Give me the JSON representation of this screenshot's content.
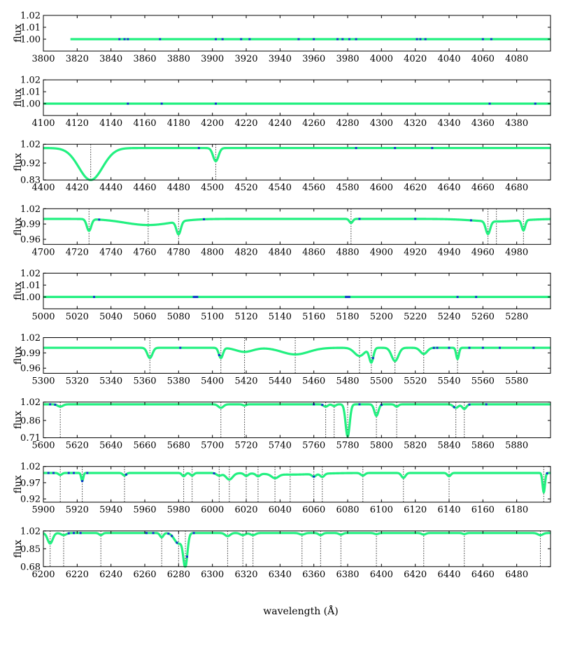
{
  "figure": {
    "xlabel": "wavelength (Å)",
    "colors": {
      "model": "#22f080",
      "observed": "#1133cc",
      "line_marker": "#333333",
      "axis": "#000000"
    }
  },
  "chart_data": [
    {
      "type": "line",
      "ylabel": "flux",
      "xlim": [
        3800,
        4100
      ],
      "ylim": [
        0.99,
        1.02
      ],
      "yticks": [
        "1.02",
        "1.01",
        "1.00"
      ],
      "yticks_values": [
        1.02,
        1.01,
        1.0
      ],
      "xticks": [
        3800,
        3820,
        3840,
        3860,
        3880,
        3900,
        3920,
        3940,
        3960,
        3980,
        4000,
        4020,
        4040,
        4060,
        4080
      ],
      "x_start": 3816,
      "continuum": 1.0,
      "lines": [],
      "observed_noise": [
        3845,
        3848,
        3850,
        3869,
        3902,
        3906,
        3917,
        3922,
        3951,
        3960,
        3974,
        3977,
        3981,
        3985,
        4021,
        4023,
        4026,
        4060,
        4065
      ]
    },
    {
      "type": "line",
      "ylabel": "flux",
      "xlim": [
        4100,
        4400
      ],
      "ylim": [
        0.99,
        1.02
      ],
      "yticks": [
        "1.02",
        "1.01",
        "1.00"
      ],
      "yticks_values": [
        1.02,
        1.01,
        1.0
      ],
      "xticks": [
        4100,
        4120,
        4140,
        4160,
        4180,
        4200,
        4220,
        4240,
        4260,
        4280,
        4300,
        4320,
        4340,
        4360,
        4380
      ],
      "x_start": 4100,
      "continuum": 1.0,
      "lines": [],
      "observed_noise": [
        4150,
        4170,
        4202,
        4364,
        4391
      ]
    },
    {
      "type": "line",
      "ylabel": "flux",
      "xlim": [
        4400,
        4700
      ],
      "ylim": [
        0.83,
        1.02
      ],
      "yticks": [
        "1.02",
        "0.92",
        "0.83"
      ],
      "yticks_values": [
        1.02,
        0.92,
        0.83
      ],
      "xticks": [
        4400,
        4420,
        4440,
        4460,
        4480,
        4500,
        4520,
        4540,
        4560,
        4580,
        4600,
        4620,
        4640,
        4660,
        4680
      ],
      "x_start": 4400,
      "continuum": 1.0,
      "lines": [
        {
          "x": 4428,
          "depth": 0.17,
          "width": 7
        },
        {
          "x": 4502,
          "depth": 0.07,
          "width": 1.6
        }
      ],
      "observed_noise": [
        4492,
        4585,
        4608,
        4630
      ]
    },
    {
      "type": "line",
      "ylabel": "flux",
      "xlim": [
        4700,
        5000
      ],
      "ylim": [
        0.95,
        1.02
      ],
      "yticks": [
        "1.02",
        "0.99",
        "0.96"
      ],
      "yticks_values": [
        1.02,
        0.99,
        0.96
      ],
      "xticks": [
        4700,
        4720,
        4740,
        4760,
        4780,
        4800,
        4820,
        4840,
        4860,
        4880,
        4900,
        4920,
        4940,
        4960,
        4980
      ],
      "x_start": 4700,
      "continuum": 1.0,
      "lines": [
        {
          "x": 4727,
          "depth": 0.023,
          "width": 1.3
        },
        {
          "x": 4762,
          "depth": 0.012,
          "width": 14
        },
        {
          "x": 4780,
          "depth": 0.025,
          "width": 1.3
        },
        {
          "x": 4882,
          "depth": 0.008,
          "width": 1.0
        },
        {
          "x": 4963,
          "depth": 0.025,
          "width": 1.3
        },
        {
          "x": 4968,
          "depth": 0.005,
          "width": 14
        },
        {
          "x": 4984,
          "depth": 0.02,
          "width": 1.0
        }
      ],
      "observed_noise": [
        4733,
        4795,
        4887,
        4920,
        4953
      ]
    },
    {
      "type": "line",
      "ylabel": "flux",
      "xlim": [
        5000,
        5300
      ],
      "ylim": [
        0.99,
        1.02
      ],
      "yticks": [
        "1.02",
        "1.01",
        "1.00"
      ],
      "yticks_values": [
        1.02,
        1.01,
        1.0
      ],
      "xticks": [
        5000,
        5020,
        5040,
        5060,
        5080,
        5100,
        5120,
        5140,
        5160,
        5180,
        5200,
        5220,
        5240,
        5260,
        5280
      ],
      "x_start": 5000,
      "continuum": 1.0,
      "lines": [],
      "observed_noise": [
        5030,
        5089,
        5090,
        5091,
        5179,
        5180,
        5181,
        5245,
        5256
      ]
    },
    {
      "type": "line",
      "ylabel": "flux",
      "xlim": [
        5300,
        5600
      ],
      "ylim": [
        0.95,
        1.02
      ],
      "yticks": [
        "1.02",
        "0.99",
        "0.96"
      ],
      "yticks_values": [
        1.02,
        0.99,
        0.96
      ],
      "xticks": [
        5300,
        5320,
        5340,
        5360,
        5380,
        5400,
        5420,
        5440,
        5460,
        5480,
        5500,
        5520,
        5540,
        5560,
        5580
      ],
      "x_start": 5300,
      "continuum": 1.0,
      "lines": [
        {
          "x": 5363,
          "depth": 0.02,
          "width": 1.5
        },
        {
          "x": 5405,
          "depth": 0.02,
          "width": 1.2
        },
        {
          "x": 5419,
          "depth": 0.008,
          "width": 5
        },
        {
          "x": 5449,
          "depth": 0.013,
          "width": 8
        },
        {
          "x": 5487,
          "depth": 0.016,
          "width": 3
        },
        {
          "x": 5494,
          "depth": 0.028,
          "width": 1.2
        },
        {
          "x": 5508,
          "depth": 0.026,
          "width": 2
        },
        {
          "x": 5525,
          "depth": 0.012,
          "width": 2
        },
        {
          "x": 5545,
          "depth": 0.022,
          "width": 0.8
        }
      ],
      "observed_noise": [
        5381,
        5404,
        5495,
        5531,
        5533,
        5540,
        5552,
        5560,
        5570,
        5590
      ]
    },
    {
      "type": "line",
      "ylabel": "flux",
      "xlim": [
        5600,
        5900
      ],
      "ylim": [
        0.71,
        1.02
      ],
      "yticks": [
        "1.02",
        "0.86",
        "0.71"
      ],
      "yticks_values": [
        1.02,
        0.86,
        0.71
      ],
      "xticks": [
        5600,
        5620,
        5640,
        5660,
        5680,
        5700,
        5720,
        5740,
        5760,
        5780,
        5800,
        5820,
        5840,
        5860,
        5880
      ],
      "x_start": 5600,
      "continuum": 1.0,
      "lines": [
        {
          "x": 5610,
          "depth": 0.02,
          "width": 1.5
        },
        {
          "x": 5705,
          "depth": 0.03,
          "width": 1.5
        },
        {
          "x": 5719,
          "depth": 0.01,
          "width": 1.0
        },
        {
          "x": 5767,
          "depth": 0.02,
          "width": 1.2
        },
        {
          "x": 5772,
          "depth": 0.015,
          "width": 1.0
        },
        {
          "x": 5780,
          "depth": 0.28,
          "width": 1.2
        },
        {
          "x": 5797,
          "depth": 0.1,
          "width": 1.2
        },
        {
          "x": 5809,
          "depth": 0.02,
          "width": 1.0
        },
        {
          "x": 5844,
          "depth": 0.03,
          "width": 1.5
        },
        {
          "x": 5849,
          "depth": 0.04,
          "width": 1.2
        }
      ],
      "observed_noise": [
        5604,
        5607,
        5760,
        5765,
        5787,
        5800,
        5843,
        5852,
        5862
      ]
    },
    {
      "type": "line",
      "ylabel": "flux",
      "xlim": [
        5900,
        6200
      ],
      "ylim": [
        0.91,
        1.02
      ],
      "yticks": [
        "1.02",
        "0.97",
        "0.92"
      ],
      "yticks_values": [
        1.02,
        0.97,
        0.92
      ],
      "xticks": [
        5900,
        5920,
        5940,
        5960,
        5980,
        6000,
        6020,
        6040,
        6060,
        6080,
        6100,
        6120,
        6140,
        6160,
        6180
      ],
      "x_start": 5900,
      "continuum": 1.0,
      "lines": [
        {
          "x": 5910,
          "depth": 0.006,
          "width": 1.0
        },
        {
          "x": 5923,
          "depth": 0.025,
          "width": 0.6
        },
        {
          "x": 5948,
          "depth": 0.008,
          "width": 1.0
        },
        {
          "x": 5983,
          "depth": 0.01,
          "width": 1.0
        },
        {
          "x": 5988,
          "depth": 0.008,
          "width": 1.0
        },
        {
          "x": 6004,
          "depth": 0.008,
          "width": 1.5
        },
        {
          "x": 6010,
          "depth": 0.02,
          "width": 2.0
        },
        {
          "x": 6020,
          "depth": 0.008,
          "width": 1.2
        },
        {
          "x": 6027,
          "depth": 0.008,
          "width": 1.2
        },
        {
          "x": 6037,
          "depth": 0.012,
          "width": 2.0
        },
        {
          "x": 6060,
          "depth": 0.008,
          "width": 1.2
        },
        {
          "x": 6065,
          "depth": 0.01,
          "width": 1.2
        },
        {
          "x": 6089,
          "depth": 0.008,
          "width": 1.2
        },
        {
          "x": 6113,
          "depth": 0.015,
          "width": 1.2
        },
        {
          "x": 6140,
          "depth": 0.01,
          "width": 1.0
        },
        {
          "x": 6196,
          "depth": 0.06,
          "width": 0.7
        },
        {
          "x": 6046,
          "depth": 0.005,
          "width": 15
        }
      ],
      "observed_noise": [
        5903,
        5906,
        5915,
        5918,
        5923,
        5926,
        5949,
        6001,
        6060,
        6198
      ]
    },
    {
      "type": "line",
      "ylabel": "flux",
      "xlim": [
        6200,
        6500
      ],
      "ylim": [
        0.68,
        1.02
      ],
      "yticks": [
        "1.02",
        "0.85",
        "0.68"
      ],
      "yticks_values": [
        1.02,
        0.85,
        0.68
      ],
      "xticks": [
        6200,
        6220,
        6240,
        6260,
        6280,
        6300,
        6320,
        6340,
        6360,
        6380,
        6400,
        6420,
        6440,
        6460,
        6480
      ],
      "x_start": 6200,
      "continuum": 1.0,
      "lines": [
        {
          "x": 6204,
          "depth": 0.1,
          "width": 1.5
        },
        {
          "x": 6212,
          "depth": 0.02,
          "width": 1.5
        },
        {
          "x": 6234,
          "depth": 0.02,
          "width": 1.0
        },
        {
          "x": 6270,
          "depth": 0.04,
          "width": 1.0
        },
        {
          "x": 6280,
          "depth": 0.1,
          "width": 2.5
        },
        {
          "x": 6284,
          "depth": 0.3,
          "width": 1.2
        },
        {
          "x": 6309,
          "depth": 0.03,
          "width": 1.5
        },
        {
          "x": 6318,
          "depth": 0.02,
          "width": 1.5
        },
        {
          "x": 6324,
          "depth": 0.02,
          "width": 1.5
        },
        {
          "x": 6353,
          "depth": 0.015,
          "width": 1.5
        },
        {
          "x": 6364,
          "depth": 0.02,
          "width": 1.2
        },
        {
          "x": 6376,
          "depth": 0.015,
          "width": 1.2
        },
        {
          "x": 6397,
          "depth": 0.01,
          "width": 1.2
        },
        {
          "x": 6425,
          "depth": 0.015,
          "width": 1.2
        },
        {
          "x": 6449,
          "depth": 0.01,
          "width": 1.0
        },
        {
          "x": 6494,
          "depth": 0.02,
          "width": 1.5
        }
      ],
      "observed_noise": [
        6215,
        6218,
        6222,
        6261,
        6265,
        6274,
        6276,
        6279,
        6285,
        6289
      ]
    }
  ]
}
